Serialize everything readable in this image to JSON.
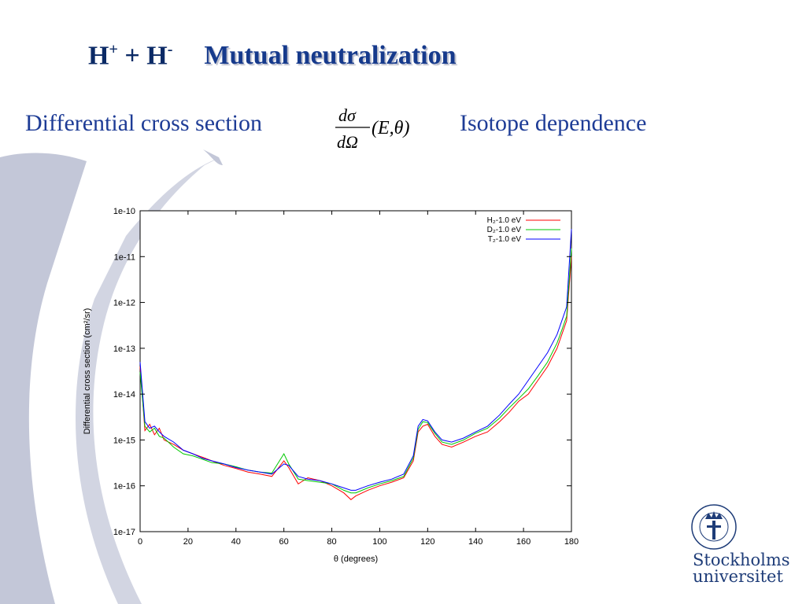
{
  "slide": {
    "title_main": "H",
    "title_sup1": "+",
    "title_mid": " + H",
    "title_sup2": "-",
    "title_rest": "Mutual neutralization",
    "subtitle_left": "Differential cross section",
    "subtitle_right": "Isotope dependence",
    "formula": {
      "numerator": "dσ",
      "denominator": "dΩ",
      "args": "(E,θ)"
    },
    "logo": {
      "name_line1": "Stockholms",
      "name_line2": "universitet",
      "ring_text": "STOCKHOLMS UNIVERSITET"
    }
  },
  "colors": {
    "title": "#163a8c",
    "subtitle": "#1e3c96",
    "background_shape": "#c3c7d8",
    "logo": "#1e3c78"
  },
  "chart_data": {
    "type": "line",
    "title": "",
    "xlabel": "θ (degrees)",
    "ylabel": "Differential cross section (cm²/sr)",
    "xlim": [
      0,
      180
    ],
    "ylim_log10": [
      -17,
      -10
    ],
    "y_scale": "log",
    "grid": false,
    "legend_position": "top-right",
    "x_ticks": [
      "0",
      "20",
      "40",
      "60",
      "80",
      "100",
      "120",
      "140",
      "160",
      "180"
    ],
    "y_ticks": [
      "1e-10",
      "1e-11",
      "1e-12",
      "1e-13",
      "1e-14",
      "1e-15",
      "1e-16",
      "1e-17"
    ],
    "series": [
      {
        "name": "H₂-1.0 eV",
        "color": "#ff0000",
        "x": [
          0,
          2,
          4,
          6,
          8,
          10,
          14,
          18,
          22,
          26,
          30,
          35,
          40,
          45,
          50,
          55,
          60,
          62,
          66,
          70,
          75,
          80,
          85,
          88,
          90,
          95,
          100,
          105,
          110,
          114,
          116,
          118,
          120,
          123,
          126,
          130,
          135,
          140,
          145,
          150,
          154,
          158,
          162,
          166,
          170,
          174,
          176,
          178,
          180
        ],
        "y": [
          4e-14,
          1.6e-15,
          2.2e-15,
          1.3e-15,
          1.8e-15,
          1e-15,
          8e-16,
          6e-16,
          5e-16,
          4.2e-16,
          3.5e-16,
          2.8e-16,
          2.4e-16,
          2e-16,
          1.8e-16,
          1.6e-16,
          3.5e-16,
          2.5e-16,
          1.1e-16,
          1.5e-16,
          1.3e-16,
          1e-16,
          7e-17,
          5e-17,
          6e-17,
          8e-17,
          1e-16,
          1.2e-16,
          1.5e-16,
          3.5e-16,
          1.5e-15,
          2e-15,
          2.2e-15,
          1.2e-15,
          8e-16,
          7e-16,
          9e-16,
          1.2e-15,
          1.5e-15,
          2.5e-15,
          4e-15,
          7e-15,
          1e-14,
          2e-14,
          4e-14,
          1e-13,
          2e-13,
          4e-13,
          1e-11
        ]
      },
      {
        "name": "D₂-1.0 eV",
        "color": "#00c800",
        "x": [
          0,
          2,
          4,
          6,
          8,
          10,
          14,
          18,
          22,
          26,
          30,
          35,
          40,
          45,
          50,
          55,
          60,
          62,
          66,
          70,
          75,
          80,
          85,
          88,
          90,
          95,
          100,
          105,
          110,
          114,
          116,
          118,
          120,
          123,
          126,
          130,
          135,
          140,
          145,
          150,
          154,
          158,
          162,
          166,
          170,
          174,
          176,
          178,
          180
        ],
        "y": [
          3e-14,
          2e-15,
          1.5e-15,
          1.8e-15,
          1.2e-15,
          1.1e-15,
          7e-16,
          5e-16,
          4.5e-16,
          3.8e-16,
          3.2e-16,
          3e-16,
          2.6e-16,
          2.2e-16,
          2e-16,
          1.9e-16,
          5e-16,
          3e-16,
          1.4e-16,
          1.3e-16,
          1.2e-16,
          1.1e-16,
          8e-17,
          7e-17,
          7e-17,
          9e-17,
          1.1e-16,
          1.3e-16,
          1.6e-16,
          4e-16,
          1.7e-15,
          2.5e-15,
          2.4e-15,
          1.4e-15,
          9e-16,
          8e-16,
          1e-15,
          1.4e-15,
          1.8e-15,
          3e-15,
          5e-15,
          8e-15,
          1.3e-14,
          2.5e-14,
          5e-14,
          1.3e-13,
          2.5e-13,
          5e-13,
          1.5e-11
        ]
      },
      {
        "name": "T₂-1.0 eV",
        "color": "#0000ff",
        "x": [
          0,
          2,
          4,
          6,
          8,
          10,
          14,
          18,
          22,
          26,
          30,
          35,
          40,
          45,
          50,
          55,
          60,
          62,
          66,
          70,
          75,
          80,
          85,
          88,
          90,
          95,
          100,
          105,
          110,
          114,
          116,
          118,
          120,
          123,
          126,
          130,
          135,
          140,
          145,
          150,
          154,
          158,
          162,
          166,
          170,
          174,
          176,
          178,
          180
        ],
        "y": [
          5e-14,
          2.5e-15,
          1.8e-15,
          2e-15,
          1.5e-15,
          1.2e-15,
          9e-16,
          6e-16,
          5e-16,
          4e-16,
          3.5e-16,
          3e-16,
          2.5e-16,
          2.2e-16,
          2e-16,
          1.8e-16,
          3e-16,
          2.8e-16,
          1.6e-16,
          1.4e-16,
          1.3e-16,
          1.1e-16,
          9e-17,
          8e-17,
          8e-17,
          1e-16,
          1.2e-16,
          1.4e-16,
          1.8e-16,
          4.5e-16,
          2e-15,
          2.8e-15,
          2.6e-15,
          1.5e-15,
          1e-15,
          9e-16,
          1.1e-15,
          1.5e-15,
          2e-15,
          3.5e-15,
          6e-15,
          1e-14,
          2e-14,
          4e-14,
          8e-14,
          2e-13,
          4e-13,
          8e-13,
          4e-11
        ]
      }
    ]
  }
}
